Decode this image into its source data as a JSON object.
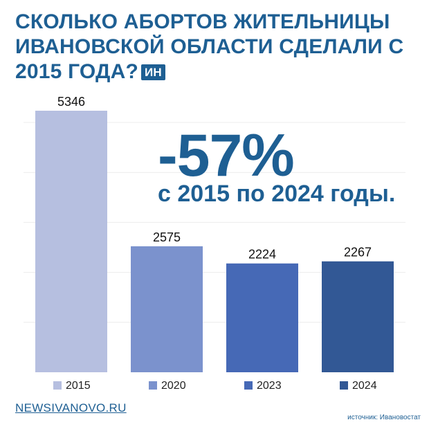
{
  "header": {
    "title": "СКОЛЬКО АБОРТОВ ЖИТЕЛЬНИЦЫ ИВАНОВСКОЙ ОБЛАСТИ СДЕЛАЛИ С 2015 ГОДА?",
    "badge": "ИН"
  },
  "callout": {
    "value": "-57%",
    "text": "с 2015 по 2024 годы."
  },
  "footer": {
    "site": "NEWSIVANOVO.RU",
    "source": "источник: Ивановостат"
  },
  "colors": {
    "accent": "#1e5f93",
    "grid": "#ececec",
    "bar_2015": "#b6bfe0",
    "bar_2020": "#7b92cd",
    "bar_2023": "#4669b6",
    "bar_2024": "#325895"
  },
  "chart_data": {
    "type": "bar",
    "title": "СКОЛЬКО АБОРТОВ ЖИТЕЛЬНИЦЫ ИВАНОВСКОЙ ОБЛАСТИ СДЕЛАЛИ С 2015 ГОДА?",
    "categories": [
      "2015",
      "2020",
      "2023",
      "2024"
    ],
    "values": [
      5346,
      2575,
      2224,
      2267
    ],
    "data_labels": [
      "5346",
      "2575",
      "2224",
      "2267"
    ],
    "legend": [
      "2015",
      "2020",
      "2023",
      "2024"
    ],
    "legend_position": "bottom",
    "colors": [
      "#b6bfe0",
      "#7b92cd",
      "#4669b6",
      "#325895"
    ],
    "ylim": [
      0,
      6000
    ],
    "grid": true,
    "xlabel": "",
    "ylabel": ""
  }
}
